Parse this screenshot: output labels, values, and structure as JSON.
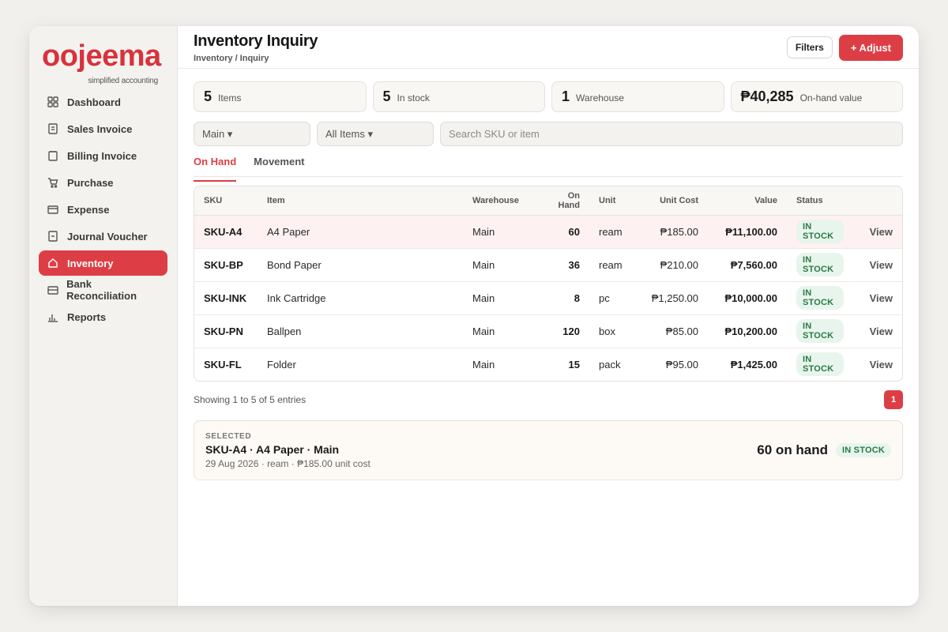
{
  "brand": {
    "name": "oojeema",
    "tagline": "simplified accounting",
    "color": "#d8323c"
  },
  "sidebar": {
    "items": [
      {
        "label": "Dashboard",
        "icon": "grid-icon",
        "active": false
      },
      {
        "label": "Sales Invoice",
        "icon": "document-icon",
        "active": false
      },
      {
        "label": "Billing Invoice",
        "icon": "clipboard-icon",
        "active": false
      },
      {
        "label": "Purchase",
        "icon": "cart-icon",
        "active": false
      },
      {
        "label": "Expense",
        "icon": "card-icon",
        "active": false
      },
      {
        "label": "Journal Voucher",
        "icon": "journal-icon",
        "active": false
      },
      {
        "label": "Inventory",
        "icon": "home-icon",
        "active": true
      },
      {
        "label": "Bank Reconciliation",
        "icon": "bank-card-icon",
        "active": false
      },
      {
        "label": "Reports",
        "icon": "bar-chart-icon",
        "active": false
      }
    ]
  },
  "header": {
    "title": "Inventory Inquiry",
    "breadcrumb": "Inventory / Inquiry",
    "filters_label": "Filters",
    "adjust_label": "+ Adjust"
  },
  "stats": [
    {
      "value": "5",
      "label": "Items"
    },
    {
      "value": "5",
      "label": "In stock"
    },
    {
      "value": "1",
      "label": "Warehouse"
    },
    {
      "value": "₱40,285",
      "label": "On-hand value"
    }
  ],
  "filters": {
    "warehouse": "Main ▾",
    "items": "All Items ▾",
    "search_placeholder": "Search SKU or item"
  },
  "tabs": [
    {
      "label": "On Hand",
      "active": true
    },
    {
      "label": "Movement",
      "active": false
    }
  ],
  "table": {
    "headers": {
      "sku": "SKU",
      "item": "Item",
      "warehouse": "Warehouse",
      "on_hand": "On Hand",
      "unit": "Unit",
      "unit_cost": "Unit Cost",
      "value": "Value",
      "status": "Status"
    },
    "rows": [
      {
        "sku": "SKU-A4",
        "item": "A4 Paper",
        "warehouse": "Main",
        "on_hand": "60",
        "unit": "ream",
        "unit_cost": "₱185.00",
        "value": "₱11,100.00",
        "status": "IN STOCK",
        "action": "View"
      },
      {
        "sku": "SKU-BP",
        "item": "Bond Paper",
        "warehouse": "Main",
        "on_hand": "36",
        "unit": "ream",
        "unit_cost": "₱210.00",
        "value": "₱7,560.00",
        "status": "IN STOCK",
        "action": "View"
      },
      {
        "sku": "SKU-INK",
        "item": "Ink Cartridge",
        "warehouse": "Main",
        "on_hand": "8",
        "unit": "pc",
        "unit_cost": "₱1,250.00",
        "value": "₱10,000.00",
        "status": "IN STOCK",
        "action": "View"
      },
      {
        "sku": "SKU-PN",
        "item": "Ballpen",
        "warehouse": "Main",
        "on_hand": "120",
        "unit": "box",
        "unit_cost": "₱85.00",
        "value": "₱10,200.00",
        "status": "IN STOCK",
        "action": "View"
      },
      {
        "sku": "SKU-FL",
        "item": "Folder",
        "warehouse": "Main",
        "on_hand": "15",
        "unit": "pack",
        "unit_cost": "₱95.00",
        "value": "₱1,425.00",
        "status": "IN STOCK",
        "action": "View"
      }
    ]
  },
  "pagination": {
    "info": "Showing 1 to 5 of 5 entries",
    "current_page": "1"
  },
  "selected": {
    "label": "SELECTED",
    "title": "SKU-A4 · A4 Paper · Main",
    "meta": "29 Aug 2026 · ream · ₱185.00 unit cost",
    "qty": "60 on hand",
    "status": "IN STOCK"
  },
  "colors": {
    "accent": "#dd3e46",
    "success_bg": "#e8f5ec",
    "success_text": "#2a7a46"
  }
}
